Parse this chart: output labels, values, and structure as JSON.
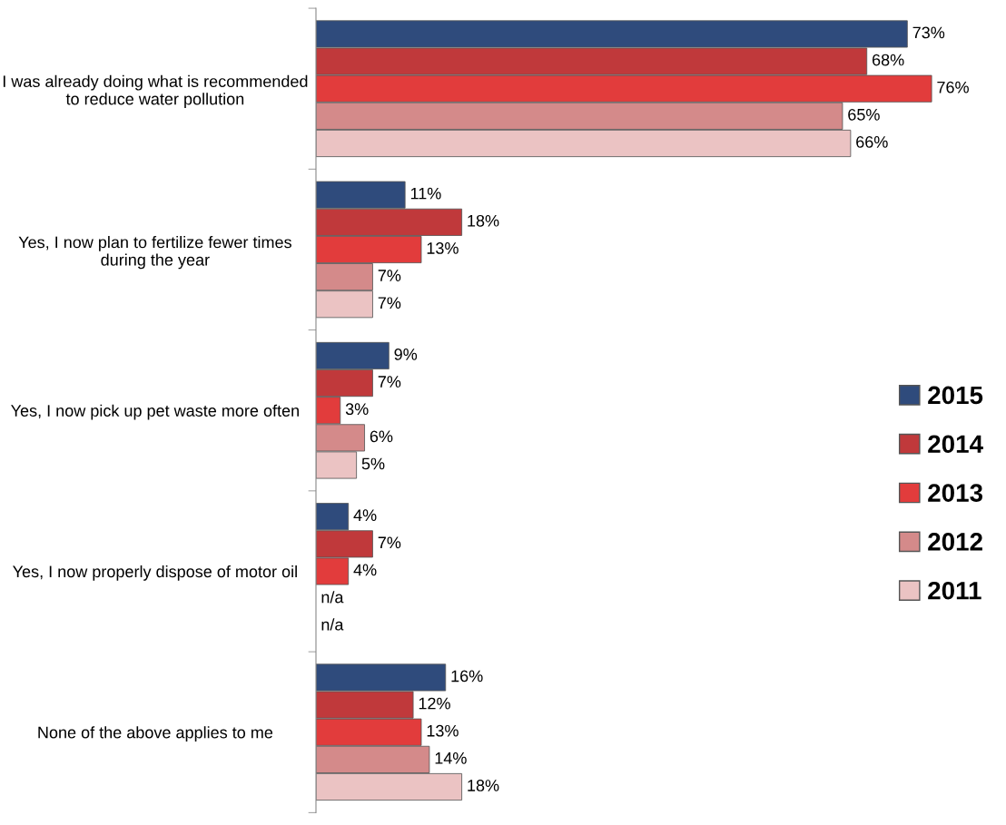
{
  "chart_data": {
    "type": "bar",
    "orientation": "horizontal",
    "categories": [
      "I was already doing what is recommended to reduce water pollution",
      "Yes, I now plan to fertilize fewer times during the year",
      "Yes, I now pick up pet waste more often",
      "Yes, I now properly dispose of motor oil",
      "None of the above applies to me"
    ],
    "series": [
      {
        "name": "2015",
        "color": "#2f4b7c",
        "values": [
          73,
          11,
          9,
          4,
          16
        ],
        "value_labels": [
          "73%",
          "11%",
          "9%",
          "4%",
          "16%"
        ]
      },
      {
        "name": "2014",
        "color": "#c0393b",
        "values": [
          68,
          18,
          7,
          7,
          12
        ],
        "value_labels": [
          "68%",
          "18%",
          "7%",
          "7%",
          "12%"
        ]
      },
      {
        "name": "2013",
        "color": "#e23c3c",
        "values": [
          76,
          13,
          3,
          4,
          13
        ],
        "value_labels": [
          "76%",
          "13%",
          "3%",
          "4%",
          "13%"
        ]
      },
      {
        "name": "2012",
        "color": "#d48a8a",
        "values": [
          65,
          7,
          6,
          null,
          14
        ],
        "value_labels": [
          "65%",
          "7%",
          "6%",
          "n/a",
          "14%"
        ]
      },
      {
        "name": "2011",
        "color": "#ebc3c3",
        "values": [
          66,
          7,
          5,
          null,
          18
        ],
        "value_labels": [
          "66%",
          "7%",
          "5%",
          "n/a",
          "18%"
        ]
      }
    ],
    "legend": "right",
    "grid": false
  }
}
